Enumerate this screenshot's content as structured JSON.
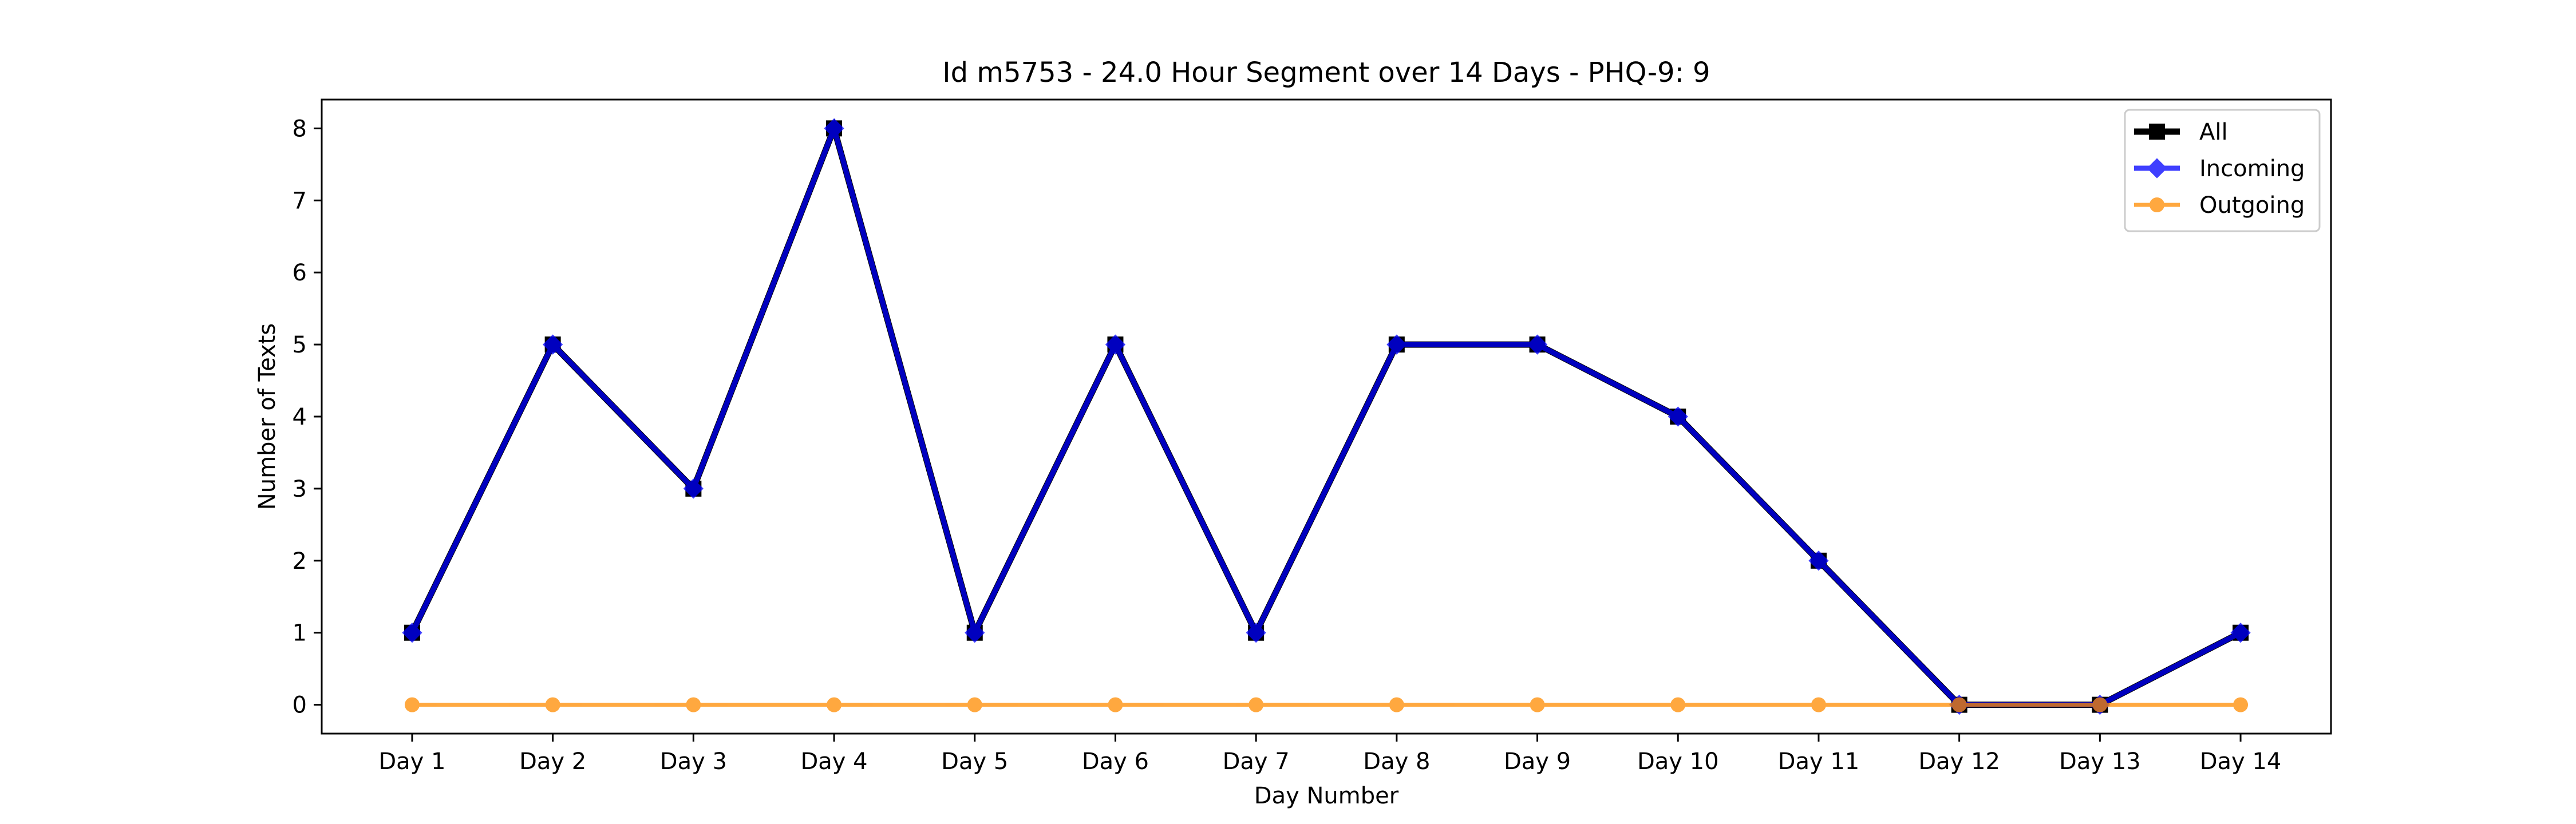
{
  "chart_data": {
    "type": "line",
    "title": "Id m5753 - 24.0 Hour Segment over 14 Days - PHQ-9: 9",
    "xlabel": "Day Number",
    "ylabel": "Number of Texts",
    "categories": [
      "Day 1",
      "Day 2",
      "Day 3",
      "Day 4",
      "Day 5",
      "Day 6",
      "Day 7",
      "Day 8",
      "Day 9",
      "Day 10",
      "Day 11",
      "Day 12",
      "Day 13",
      "Day 14"
    ],
    "ylim": [
      -0.4,
      8.4
    ],
    "yticks": [
      0,
      1,
      2,
      3,
      4,
      5,
      6,
      7,
      8
    ],
    "grid": false,
    "legend_position": "top-right",
    "series": [
      {
        "name": "All",
        "color": "#000000",
        "marker": "square",
        "values": [
          1,
          5,
          3,
          8,
          1,
          5,
          1,
          5,
          5,
          4,
          2,
          0,
          0,
          1
        ]
      },
      {
        "name": "Incoming",
        "color": "#0000ff",
        "marker": "diamond",
        "values": [
          1,
          5,
          3,
          8,
          1,
          5,
          1,
          5,
          5,
          4,
          2,
          0,
          0,
          1
        ]
      },
      {
        "name": "Outgoing",
        "color": "#ff8c00",
        "marker": "circle",
        "values": [
          0,
          0,
          0,
          0,
          0,
          0,
          0,
          0,
          0,
          0,
          0,
          0,
          0,
          0
        ]
      }
    ]
  }
}
